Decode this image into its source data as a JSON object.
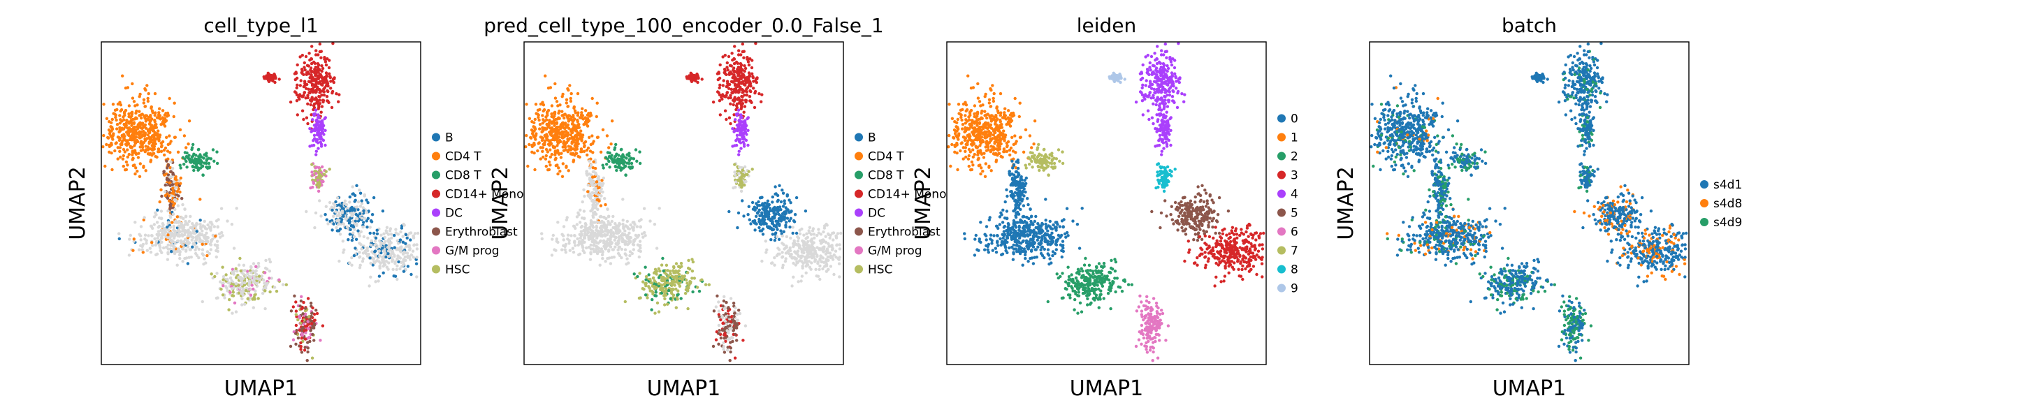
{
  "chart_data": [
    {
      "type": "scatter",
      "title": "cell_type_l1",
      "xlabel": "UMAP1",
      "ylabel": "UMAP2",
      "legend_position": "right",
      "categories": [
        {
          "name": "B",
          "color": "#1f77b4"
        },
        {
          "name": "CD4 T",
          "color": "#ff7f0e"
        },
        {
          "name": "CD8 T",
          "color": "#279e68"
        },
        {
          "name": "CD14+ Mono",
          "color": "#d62728"
        },
        {
          "name": "DC",
          "color": "#aa40fc"
        },
        {
          "name": "Erythroblast",
          "color": "#8c564b"
        },
        {
          "name": "G/M prog",
          "color": "#e377c2"
        },
        {
          "name": "HSC",
          "color": "#b5bd61"
        }
      ],
      "clusters": [
        {
          "x": 0.12,
          "y": 0.72,
          "sx": 0.055,
          "sy": 0.05,
          "weights": {
            "CD4 T": 1
          }
        },
        {
          "x": 0.3,
          "y": 0.63,
          "sx": 0.02,
          "sy": 0.018,
          "weights": {
            "CD8 T": 1
          }
        },
        {
          "x": 0.22,
          "y": 0.55,
          "sx": 0.015,
          "sy": 0.04,
          "weights": {
            "Erythroblast": 0.5,
            "CD4 T": 0.3,
            "Other": 0.2
          }
        },
        {
          "x": 0.25,
          "y": 0.4,
          "sx": 0.07,
          "sy": 0.035,
          "weights": {
            "Other": 0.9,
            "CD4 T": 0.05,
            "B": 0.05
          }
        },
        {
          "x": 0.45,
          "y": 0.25,
          "sx": 0.045,
          "sy": 0.03,
          "weights": {
            "Other": 0.6,
            "G/M prog": 0.1,
            "HSC": 0.3
          }
        },
        {
          "x": 0.67,
          "y": 0.87,
          "sx": 0.03,
          "sy": 0.05,
          "weights": {
            "CD14+ Mono": 1
          }
        },
        {
          "x": 0.68,
          "y": 0.73,
          "sx": 0.012,
          "sy": 0.03,
          "weights": {
            "DC": 1
          }
        },
        {
          "x": 0.53,
          "y": 0.89,
          "sx": 0.012,
          "sy": 0.006,
          "weights": {
            "CD14+ Mono": 1
          }
        },
        {
          "x": 0.68,
          "y": 0.58,
          "sx": 0.012,
          "sy": 0.02,
          "weights": {
            "HSC": 0.5,
            "G/M prog": 0.5
          }
        },
        {
          "x": 0.77,
          "y": 0.46,
          "sx": 0.04,
          "sy": 0.03,
          "weights": {
            "B": 0.6,
            "Other": 0.4
          }
        },
        {
          "x": 0.9,
          "y": 0.35,
          "sx": 0.05,
          "sy": 0.035,
          "weights": {
            "Other": 0.8,
            "B": 0.2
          }
        },
        {
          "x": 0.64,
          "y": 0.12,
          "sx": 0.018,
          "sy": 0.04,
          "weights": {
            "Erythroblast": 0.4,
            "CD14+ Mono": 0.3,
            "G/M prog": 0.2,
            "HSC": 0.1
          }
        }
      ]
    },
    {
      "type": "scatter",
      "title": "pred_cell_type_100_encoder_0.0_False_1",
      "xlabel": "UMAP1",
      "ylabel": "UMAP2",
      "legend_position": "right",
      "categories": [
        {
          "name": "B",
          "color": "#1f77b4"
        },
        {
          "name": "CD4 T",
          "color": "#ff7f0e"
        },
        {
          "name": "CD8 T",
          "color": "#279e68"
        },
        {
          "name": "CD14+ Mono",
          "color": "#d62728"
        },
        {
          "name": "DC",
          "color": "#aa40fc"
        },
        {
          "name": "Erythroblast",
          "color": "#8c564b"
        },
        {
          "name": "G/M prog",
          "color": "#e377c2"
        },
        {
          "name": "HSC",
          "color": "#b5bd61"
        }
      ],
      "clusters": [
        {
          "x": 0.12,
          "y": 0.72,
          "sx": 0.055,
          "sy": 0.05,
          "weights": {
            "CD4 T": 1
          }
        },
        {
          "x": 0.3,
          "y": 0.63,
          "sx": 0.02,
          "sy": 0.018,
          "weights": {
            "CD8 T": 1
          }
        },
        {
          "x": 0.22,
          "y": 0.55,
          "sx": 0.015,
          "sy": 0.04,
          "weights": {
            "Other": 0.8,
            "CD4 T": 0.2
          }
        },
        {
          "x": 0.25,
          "y": 0.4,
          "sx": 0.07,
          "sy": 0.035,
          "weights": {
            "Other": 1
          }
        },
        {
          "x": 0.45,
          "y": 0.25,
          "sx": 0.045,
          "sy": 0.03,
          "weights": {
            "HSC": 0.8,
            "CD8 T": 0.2
          }
        },
        {
          "x": 0.67,
          "y": 0.87,
          "sx": 0.03,
          "sy": 0.05,
          "weights": {
            "CD14+ Mono": 1
          }
        },
        {
          "x": 0.68,
          "y": 0.73,
          "sx": 0.012,
          "sy": 0.03,
          "weights": {
            "DC": 1
          }
        },
        {
          "x": 0.53,
          "y": 0.89,
          "sx": 0.012,
          "sy": 0.006,
          "weights": {
            "CD14+ Mono": 1
          }
        },
        {
          "x": 0.68,
          "y": 0.58,
          "sx": 0.012,
          "sy": 0.02,
          "weights": {
            "HSC": 0.6,
            "Other": 0.4
          }
        },
        {
          "x": 0.77,
          "y": 0.46,
          "sx": 0.04,
          "sy": 0.03,
          "weights": {
            "B": 1
          }
        },
        {
          "x": 0.9,
          "y": 0.35,
          "sx": 0.05,
          "sy": 0.035,
          "weights": {
            "Other": 1
          }
        },
        {
          "x": 0.64,
          "y": 0.12,
          "sx": 0.018,
          "sy": 0.04,
          "weights": {
            "Erythroblast": 0.5,
            "Other": 0.3,
            "CD14+ Mono": 0.2
          }
        }
      ]
    },
    {
      "type": "scatter",
      "title": "leiden",
      "xlabel": "UMAP1",
      "ylabel": "UMAP2",
      "legend_position": "right",
      "categories": [
        {
          "name": "0",
          "color": "#1f77b4"
        },
        {
          "name": "1",
          "color": "#ff7f0e"
        },
        {
          "name": "2",
          "color": "#279e68"
        },
        {
          "name": "3",
          "color": "#d62728"
        },
        {
          "name": "4",
          "color": "#aa40fc"
        },
        {
          "name": "5",
          "color": "#8c564b"
        },
        {
          "name": "6",
          "color": "#e377c2"
        },
        {
          "name": "7",
          "color": "#b5bd61"
        },
        {
          "name": "8",
          "color": "#17becf"
        },
        {
          "name": "9",
          "color": "#aec7e8"
        }
      ],
      "clusters": [
        {
          "x": 0.12,
          "y": 0.72,
          "sx": 0.055,
          "sy": 0.05,
          "weights": {
            "1": 1
          }
        },
        {
          "x": 0.3,
          "y": 0.63,
          "sx": 0.02,
          "sy": 0.018,
          "weights": {
            "7": 1
          }
        },
        {
          "x": 0.22,
          "y": 0.55,
          "sx": 0.015,
          "sy": 0.04,
          "weights": {
            "0": 1
          }
        },
        {
          "x": 0.25,
          "y": 0.4,
          "sx": 0.07,
          "sy": 0.035,
          "weights": {
            "0": 1
          }
        },
        {
          "x": 0.45,
          "y": 0.25,
          "sx": 0.045,
          "sy": 0.03,
          "weights": {
            "2": 1
          }
        },
        {
          "x": 0.67,
          "y": 0.87,
          "sx": 0.03,
          "sy": 0.05,
          "weights": {
            "4": 1
          }
        },
        {
          "x": 0.68,
          "y": 0.73,
          "sx": 0.012,
          "sy": 0.03,
          "weights": {
            "4": 1
          }
        },
        {
          "x": 0.53,
          "y": 0.89,
          "sx": 0.012,
          "sy": 0.006,
          "weights": {
            "9": 1
          }
        },
        {
          "x": 0.68,
          "y": 0.58,
          "sx": 0.012,
          "sy": 0.02,
          "weights": {
            "8": 1
          }
        },
        {
          "x": 0.77,
          "y": 0.46,
          "sx": 0.04,
          "sy": 0.03,
          "weights": {
            "5": 1
          }
        },
        {
          "x": 0.9,
          "y": 0.35,
          "sx": 0.05,
          "sy": 0.035,
          "weights": {
            "3": 1
          }
        },
        {
          "x": 0.64,
          "y": 0.12,
          "sx": 0.018,
          "sy": 0.04,
          "weights": {
            "6": 1
          }
        }
      ]
    },
    {
      "type": "scatter",
      "title": "batch",
      "xlabel": "UMAP1",
      "ylabel": "UMAP2",
      "legend_position": "right",
      "categories": [
        {
          "name": "s4d1",
          "color": "#1f77b4"
        },
        {
          "name": "s4d8",
          "color": "#ff7f0e"
        },
        {
          "name": "s4d9",
          "color": "#279e68"
        }
      ],
      "clusters": [
        {
          "x": 0.12,
          "y": 0.72,
          "sx": 0.055,
          "sy": 0.05,
          "weights": {
            "s4d1": 0.85,
            "s4d9": 0.1,
            "s4d8": 0.05
          }
        },
        {
          "x": 0.3,
          "y": 0.63,
          "sx": 0.02,
          "sy": 0.018,
          "weights": {
            "s4d1": 0.6,
            "s4d9": 0.4
          }
        },
        {
          "x": 0.22,
          "y": 0.55,
          "sx": 0.015,
          "sy": 0.04,
          "weights": {
            "s4d1": 0.7,
            "s4d9": 0.3
          }
        },
        {
          "x": 0.25,
          "y": 0.4,
          "sx": 0.07,
          "sy": 0.035,
          "weights": {
            "s4d1": 0.75,
            "s4d8": 0.15,
            "s4d9": 0.1
          }
        },
        {
          "x": 0.45,
          "y": 0.25,
          "sx": 0.045,
          "sy": 0.03,
          "weights": {
            "s4d1": 0.7,
            "s4d9": 0.3
          }
        },
        {
          "x": 0.67,
          "y": 0.87,
          "sx": 0.03,
          "sy": 0.05,
          "weights": {
            "s4d1": 0.9,
            "s4d9": 0.1
          }
        },
        {
          "x": 0.68,
          "y": 0.73,
          "sx": 0.012,
          "sy": 0.03,
          "weights": {
            "s4d1": 0.8,
            "s4d9": 0.2
          }
        },
        {
          "x": 0.53,
          "y": 0.89,
          "sx": 0.012,
          "sy": 0.006,
          "weights": {
            "s4d1": 1
          }
        },
        {
          "x": 0.68,
          "y": 0.58,
          "sx": 0.012,
          "sy": 0.02,
          "weights": {
            "s4d1": 0.7,
            "s4d9": 0.3
          }
        },
        {
          "x": 0.77,
          "y": 0.46,
          "sx": 0.04,
          "sy": 0.03,
          "weights": {
            "s4d1": 0.8,
            "s4d8": 0.2
          }
        },
        {
          "x": 0.9,
          "y": 0.35,
          "sx": 0.05,
          "sy": 0.035,
          "weights": {
            "s4d1": 0.75,
            "s4d8": 0.25
          }
        },
        {
          "x": 0.64,
          "y": 0.12,
          "sx": 0.018,
          "sy": 0.04,
          "weights": {
            "s4d1": 0.5,
            "s4d9": 0.5
          }
        }
      ]
    }
  ],
  "other_color": "#d9d9d9"
}
